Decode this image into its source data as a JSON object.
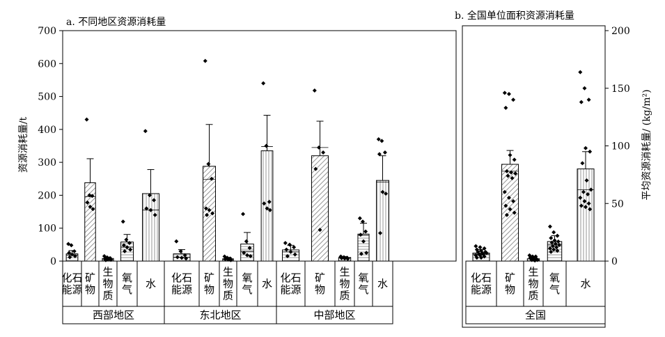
{
  "chart_data": [
    {
      "type": "bar",
      "title": "a. 不同地区资源消耗量",
      "ylabel": "资源消耗量/t",
      "ylim": [
        0,
        700
      ],
      "yticks": [
        0,
        100,
        200,
        300,
        400,
        500,
        600,
        700
      ],
      "groups": [
        {
          "label": "西部地区",
          "bars": [
            {
              "category": "化石\n能源",
              "value": 22,
              "err": 10,
              "median": 18,
              "hatch": "hline",
              "points": [
                52,
                48,
                30,
                25,
                20,
                15,
                12
              ]
            },
            {
              "category": "矿\n物",
              "value": 238,
              "err": 73,
              "median": 196,
              "hatch": "diag",
              "points": [
                430,
                200,
                198,
                178,
                165,
                158
              ]
            },
            {
              "category": "生\n物\n质",
              "value": 8,
              "err": 4,
              "median": 6,
              "hatch": "hline",
              "points": [
                15,
                11,
                9,
                7,
                5,
                4,
                3
              ]
            },
            {
              "category": "氧\n气",
              "value": 58,
              "err": 23,
              "median": 42,
              "hatch": "hline",
              "points": [
                120,
                65,
                55,
                48,
                42,
                35,
                30
              ]
            },
            {
              "category": "水",
              "value": 205,
              "err": 73,
              "median": 155,
              "hatch": "vline",
              "points": [
                395,
                200,
                185,
                160,
                155,
                140
              ]
            }
          ]
        },
        {
          "label": "东北地区",
          "bars": [
            {
              "category": "化石\n能源",
              "value": 22,
              "err": 13,
              "median": 12,
              "hatch": "hline",
              "points": [
                60,
                30,
                18,
                12,
                10,
                8
              ]
            },
            {
              "category": "矿\n物",
              "value": 288,
              "err": 127,
              "median": 248,
              "hatch": "diag",
              "points": [
                608,
                295,
                250,
                160,
                155,
                145,
                140
              ]
            },
            {
              "category": "生\n物\n质",
              "value": 7,
              "err": 4,
              "median": 5,
              "hatch": "hline",
              "points": [
                14,
                10,
                8,
                6,
                5,
                3
              ]
            },
            {
              "category": "氧\n气",
              "value": 52,
              "err": 35,
              "median": 30,
              "hatch": "hline",
              "points": [
                143,
                60,
                40,
                25,
                18,
                15
              ]
            },
            {
              "category": "水",
              "value": 335,
              "err": 108,
              "median": 348,
              "hatch": "vline",
              "points": [
                540,
                350,
                180,
                175,
                160,
                155
              ]
            }
          ]
        },
        {
          "label": "中部地区",
          "bars": [
            {
              "category": "化石\n能源",
              "value": 34,
              "err": 14,
              "median": 28,
              "hatch": "hline",
              "points": [
                55,
                50,
                42,
                35,
                28,
                20,
                15
              ]
            },
            {
              "category": "矿\n物",
              "value": 320,
              "err": 105,
              "median": 345,
              "hatch": "diag",
              "points": [
                518,
                345,
                330,
                280,
                95
              ]
            },
            {
              "category": "生\n物\n质",
              "value": 11,
              "err": 3,
              "median": 9,
              "hatch": "hline",
              "points": [
                14,
                12,
                10,
                9,
                8,
                7
              ]
            },
            {
              "category": "氧\n气",
              "value": 82,
              "err": 33,
              "median": 78,
              "hatch": "hline",
              "points": [
                130,
                120,
                90,
                80,
                60,
                25,
                22
              ]
            },
            {
              "category": "水",
              "value": 245,
              "err": 75,
              "median": 240,
              "hatch": "vline",
              "points": [
                370,
                365,
                330,
                325,
                210,
                205,
                85
              ]
            }
          ]
        }
      ]
    },
    {
      "type": "bar",
      "title": "b. 全国单位面积资源消耗量",
      "ylabel": "平均资源消耗量/ (kg/m²)",
      "ylim": [
        0,
        200
      ],
      "yticks": [
        0,
        50,
        100,
        150,
        200
      ],
      "axis_side": "right",
      "groups": [
        {
          "label": "全国",
          "bars": [
            {
              "category": "化石\n能源",
              "value": 7,
              "err": 3,
              "median": 6,
              "hatch": "hline",
              "points": [
                13,
                12,
                11,
                10,
                9,
                8,
                8,
                7,
                7,
                6,
                6,
                5,
                5,
                4,
                3,
                3
              ]
            },
            {
              "category": "矿\n物",
              "value": 84,
              "err": 12,
              "median": 78,
              "hatch": "diag",
              "points": [
                146,
                145,
                140,
                133,
                92,
                88,
                78,
                77,
                76,
                74,
                72,
                60,
                55,
                52,
                48,
                45,
                42,
                40
              ]
            },
            {
              "category": "生\n物\n质",
              "value": 2,
              "err": 1,
              "median": 2,
              "hatch": "hline",
              "points": [
                5,
                4,
                4,
                3,
                3,
                2,
                2,
                1,
                1,
                1,
                0.5
              ]
            },
            {
              "category": "氧\n气",
              "value": 17,
              "err": 5,
              "median": 14,
              "hatch": "hline",
              "points": [
                30,
                25,
                22,
                20,
                18,
                17,
                16,
                15,
                14,
                13,
                12,
                11,
                10,
                9,
                8
              ]
            },
            {
              "category": "水",
              "value": 80,
              "err": 15,
              "median": 62,
              "hatch": "vline",
              "points": [
                164,
                150,
                140,
                138,
                98,
                95,
                85,
                70,
                62,
                60,
                58,
                55,
                52,
                50,
                48,
                47,
                45
              ]
            }
          ]
        }
      ]
    }
  ]
}
